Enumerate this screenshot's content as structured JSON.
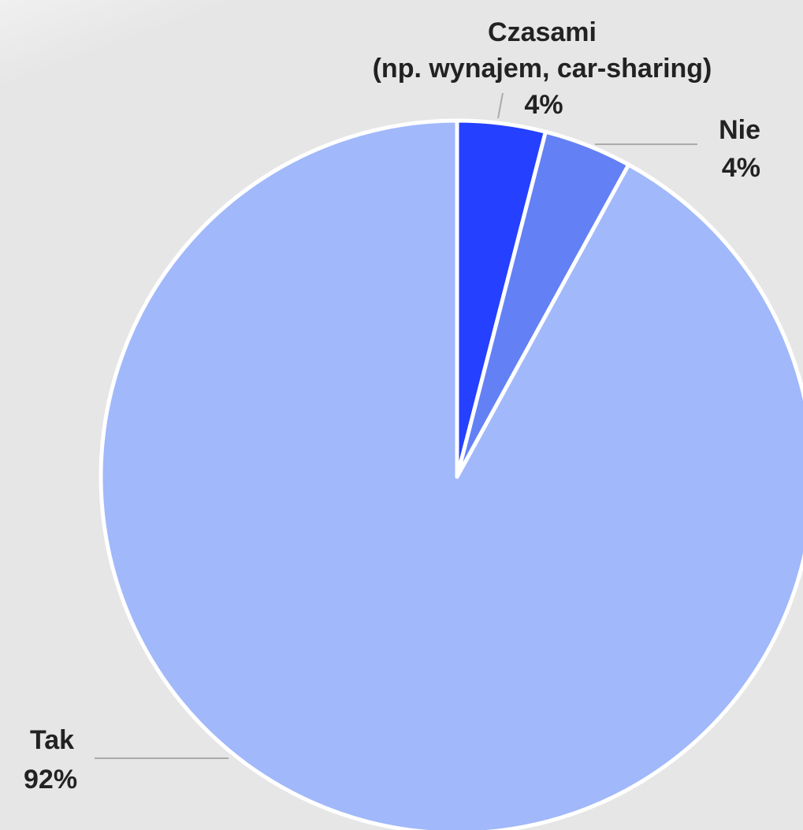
{
  "chart_data": {
    "type": "pie",
    "categories": [
      "Czasami\n(np. wynajem, car-sharing)",
      "Nie",
      "Tak"
    ],
    "values": [
      4,
      4,
      92
    ],
    "value_labels": [
      "4%",
      "4%",
      "92%"
    ],
    "colors": [
      "#2540ff",
      "#6380f5",
      "#a1b8fa"
    ]
  }
}
